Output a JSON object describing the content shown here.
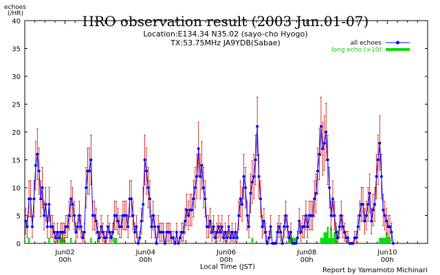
{
  "chart_data": {
    "type": "line",
    "title": "HRO observation result (2003 Jun.01-07)",
    "subtitle_lines": [
      "Location:E134.34 N35.02 (sayo-cho Hyogo)",
      "TX:53.75MHz JA9YDB(Sabae)"
    ],
    "ylabel_lines": [
      "echoes",
      "(/HR)"
    ],
    "xlabel": "Local Time (JST)",
    "credit": "Report by Yamamoto Michinari",
    "ylim": [
      0,
      40
    ],
    "yticks": [
      0,
      5,
      10,
      15,
      20,
      25,
      30,
      35,
      40
    ],
    "xlim_hours": [
      0,
      240
    ],
    "xticks": [
      {
        "hour": 24,
        "line1": "Jun02",
        "line2": "00h"
      },
      {
        "hour": 72,
        "line1": "Jun04",
        "line2": "00h"
      },
      {
        "hour": 120,
        "line1": "Jun06",
        "line2": "00h"
      },
      {
        "hour": 168,
        "line1": "Jun08",
        "line2": "00h"
      },
      {
        "hour": 216,
        "line1": "Jun10",
        "line2": "00h"
      }
    ],
    "legend": [
      {
        "label": "all echoes",
        "color": "#0000ff"
      },
      {
        "label": "long echo (>10)",
        "color": "#00dd00"
      }
    ],
    "colors": {
      "all_echoes": "#0000ff",
      "long_echo": "#00dd00",
      "error_bar": "#cc0000"
    },
    "series": [
      {
        "name": "all echoes",
        "values": [
          4,
          3,
          8,
          8,
          3,
          8,
          14,
          16,
          13,
          8,
          10,
          5,
          7,
          3,
          7,
          3,
          3,
          2,
          1,
          2,
          1,
          2,
          2,
          2,
          3,
          3,
          5,
          8,
          7,
          5,
          2,
          3,
          5,
          3,
          1,
          2,
          10,
          13,
          13,
          15,
          5,
          5,
          4,
          2,
          1,
          3,
          2,
          1,
          1,
          3,
          2,
          1,
          2,
          5,
          5,
          4,
          3,
          3,
          5,
          5,
          5,
          3,
          8,
          8,
          5,
          2,
          3,
          0,
          1,
          4,
          7,
          15,
          13,
          10,
          8,
          3,
          5,
          3,
          0,
          3,
          2,
          2,
          2,
          0,
          2,
          2,
          2,
          1,
          1,
          0,
          2,
          0,
          1,
          2,
          2,
          4,
          6,
          5,
          6,
          6,
          8,
          10,
          12,
          17,
          12,
          14,
          10,
          8,
          3,
          3,
          4,
          2,
          3,
          1,
          2,
          3,
          2,
          3,
          1,
          2,
          1,
          3,
          1,
          2,
          1,
          2,
          1,
          5,
          8,
          7,
          12,
          10,
          5,
          3,
          9,
          11,
          12,
          15,
          21,
          12,
          8,
          3,
          4,
          2,
          0,
          1,
          3,
          0,
          0,
          0,
          2,
          3,
          2,
          0,
          3,
          5,
          3,
          1,
          2,
          0,
          0,
          0,
          1,
          4,
          2,
          3,
          3,
          5,
          3,
          5,
          5,
          5,
          8,
          9,
          13,
          16,
          21,
          17,
          18,
          20,
          15,
          10,
          5,
          8,
          5,
          2,
          1,
          3,
          5,
          3,
          2,
          1,
          1,
          0,
          0,
          0,
          1,
          1,
          3,
          5,
          7,
          7,
          4,
          5,
          7,
          9,
          4,
          6,
          7,
          12,
          15,
          18,
          12,
          6,
          5,
          4,
          3,
          3,
          2,
          0
        ]
      },
      {
        "name": "long echo (>10)",
        "values": [
          0,
          0,
          1,
          0,
          0,
          0,
          0,
          0,
          0,
          0,
          0,
          0,
          0,
          0,
          1,
          0,
          0,
          0,
          0,
          1,
          0,
          1,
          2,
          1,
          0,
          0,
          0,
          1,
          0,
          0,
          0,
          0,
          0,
          0,
          0,
          0,
          0,
          0,
          0,
          1,
          0,
          0,
          0,
          1,
          0,
          0,
          0,
          0,
          0,
          0,
          0,
          0,
          0,
          1,
          1,
          0,
          0,
          0,
          0,
          0,
          0,
          0,
          0,
          0,
          0,
          0,
          0,
          0,
          0,
          0,
          0,
          0,
          0,
          0,
          0,
          0,
          0,
          0,
          0,
          0,
          0,
          0,
          0,
          0,
          0,
          0,
          0,
          0,
          0,
          0,
          0,
          0,
          0,
          0,
          0,
          0,
          0,
          0,
          0,
          0,
          0,
          0,
          0,
          0,
          0,
          0,
          0,
          0,
          0,
          0,
          0,
          0,
          0,
          0,
          0,
          0,
          0,
          0,
          0,
          0,
          0,
          0,
          0,
          0,
          0,
          0,
          0,
          0,
          0,
          0,
          0,
          0,
          0,
          0,
          0,
          1,
          0,
          0,
          0,
          0,
          0,
          0,
          0,
          0,
          0,
          0,
          0,
          0,
          0,
          0,
          0,
          0,
          0,
          0,
          0,
          0,
          0,
          1,
          1,
          1,
          1,
          1,
          0,
          0,
          0,
          0,
          0,
          0,
          0,
          0,
          0,
          0,
          0,
          0,
          0,
          0,
          1,
          1,
          2,
          2,
          3,
          1,
          3,
          1,
          2,
          3,
          0,
          0,
          0,
          0,
          0,
          0,
          0,
          0,
          0,
          0,
          0,
          0,
          0,
          0,
          0,
          0,
          0,
          0,
          0,
          0,
          0,
          0,
          0,
          0,
          0,
          1,
          1,
          1,
          1,
          2,
          1,
          1,
          0,
          0,
          0,
          0,
          0,
          0,
          0,
          0,
          0
        ]
      }
    ]
  }
}
